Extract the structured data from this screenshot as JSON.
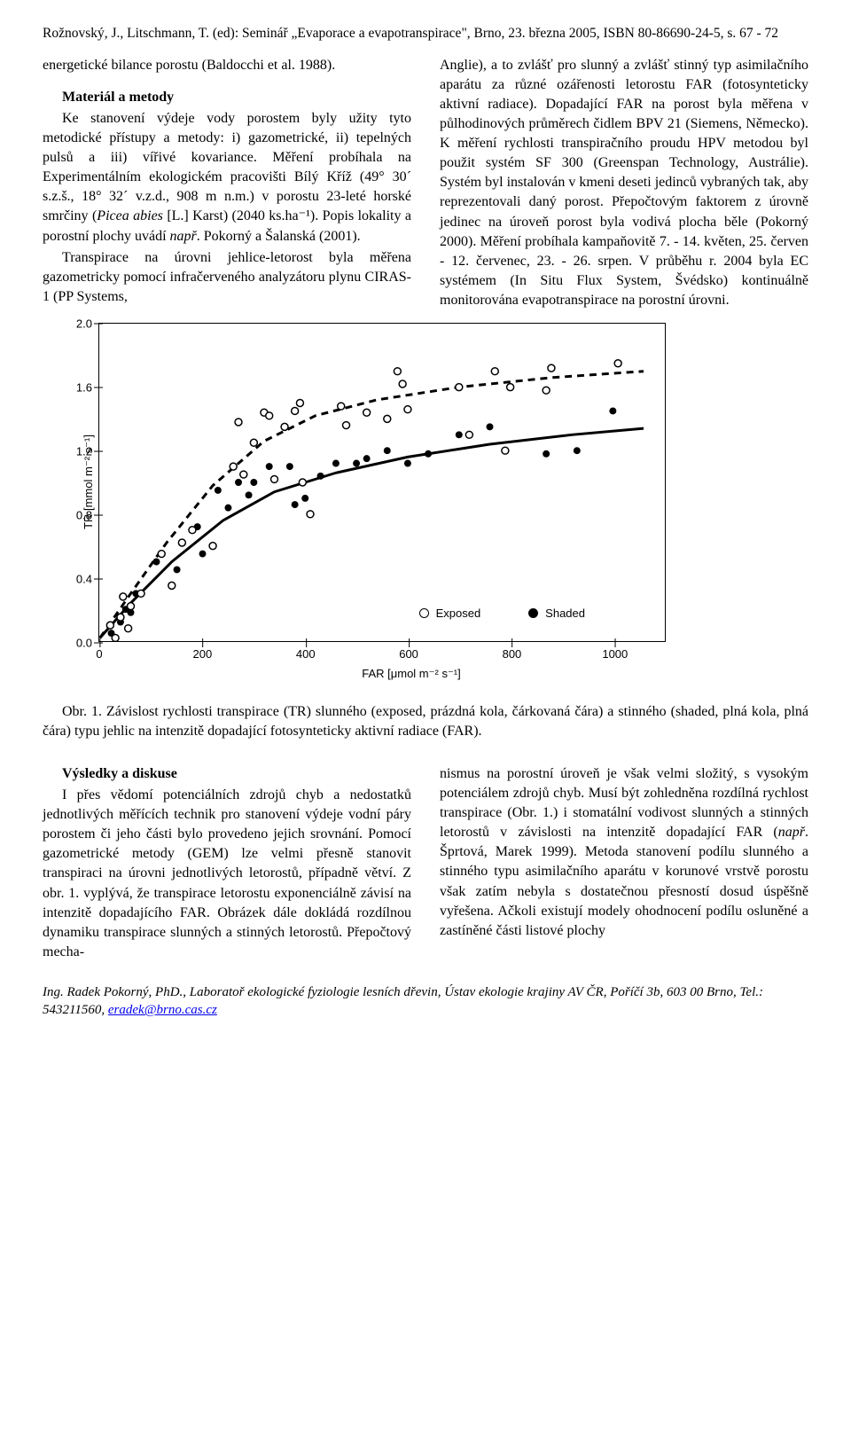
{
  "header": {
    "line1": "Rožnovský, J., Litschmann, T. (ed): Seminář „Evaporace a evapotranspirace\", Brno, 23. března 2005, ISBN 80-86690-24-5, s. 67 - 72"
  },
  "col_left": {
    "p1": "energetické bilance porostu (Baldocchi et al. 1988).",
    "section_title": "Materiál a metody",
    "p2a": "Ke stanovení výdeje vody porostem byly užity tyto metodické přístupy a metody: i) gazometrické, ii) tepelných pulsů a iii) vířivé kovariance. Měření probíhala na Experimentálním ekologickém pracovišti Bílý Kříž (49° 30´ s.z.š., 18° 32´ v.z.d., 908 m n.m.) v porostu 23-leté horské smrčiny (",
    "p2_species": "Picea abies",
    "p2b": " [L.] Karst) (2040 ks.ha⁻¹). Popis lokality a porostní plochy uvádí ",
    "p2_ref": "např",
    "p2c": ". Pokorný a Šalanská (2001).",
    "p3": "Transpirace na úrovni jehlice-letorost byla měřena gazometricky pomocí infračerveného analyzátoru plynu CIRAS-1 (PP Systems,"
  },
  "col_right": {
    "p1a": "Anglie), a to zvlášť pro slunný a zvlášť stinný typ asimilačního aparátu za různé ozářenosti letorostu FAR (fotosynteticky aktivní radiace). Dopadající FAR na porost byla měřena v půlhodinových průměrech čidlem BPV 21 (Siemens, Německo). K měření rychlosti transpiračního proudu HPV metodou byl použit systém SF 300 (Greenspan Technology, Austrálie). Systém byl instalován v kmeni deseti jedinců vybraných tak, aby reprezentovali daný porost. Přepočtovým faktorem z úrovně jedinec na úroveň porost byla vodivá plocha běle (Pokorný 2000). Měření probíhala kampaňovitě 7. - 14. květen, 25. červen - 12. červenec, 23. - 26. srpen. V průběhu r. 2004 byla EC systémem (In Situ Flux System, Švédsko) kontinuálně monitorována evapotranspirace na porostní úrovni."
  },
  "figure": {
    "type": "scatter-with-fit",
    "xlim": [
      0,
      1100
    ],
    "ylim": [
      0,
      2.0
    ],
    "xticks": [
      0,
      200,
      400,
      600,
      800,
      1000
    ],
    "yticks": [
      0.0,
      0.4,
      0.8,
      1.2,
      1.6,
      2.0
    ],
    "xlabel": "FAR [μmol m⁻² s⁻¹]",
    "ylabel": "TR  [mmol m⁻² s⁻¹]",
    "background_color": "#ffffff",
    "axis_color": "#000000",
    "legend": [
      {
        "marker": "open-circle",
        "label": "Exposed"
      },
      {
        "marker": "filled-circle",
        "label": "Shaded"
      }
    ],
    "exposed_points": [
      [
        20,
        0.1
      ],
      [
        30,
        0.02
      ],
      [
        40,
        0.15
      ],
      [
        45,
        0.28
      ],
      [
        55,
        0.08
      ],
      [
        60,
        0.22
      ],
      [
        80,
        0.3
      ],
      [
        120,
        0.55
      ],
      [
        140,
        0.35
      ],
      [
        160,
        0.62
      ],
      [
        180,
        0.7
      ],
      [
        220,
        0.6
      ],
      [
        260,
        1.1
      ],
      [
        270,
        1.38
      ],
      [
        280,
        1.05
      ],
      [
        300,
        1.25
      ],
      [
        320,
        1.44
      ],
      [
        330,
        1.42
      ],
      [
        340,
        1.02
      ],
      [
        360,
        1.35
      ],
      [
        380,
        1.45
      ],
      [
        390,
        1.5
      ],
      [
        395,
        1.0
      ],
      [
        410,
        0.8
      ],
      [
        470,
        1.48
      ],
      [
        480,
        1.36
      ],
      [
        520,
        1.44
      ],
      [
        560,
        1.4
      ],
      [
        580,
        1.7
      ],
      [
        590,
        1.62
      ],
      [
        600,
        1.46
      ],
      [
        700,
        1.6
      ],
      [
        720,
        1.3
      ],
      [
        770,
        1.7
      ],
      [
        790,
        1.2
      ],
      [
        800,
        1.6
      ],
      [
        870,
        1.58
      ],
      [
        880,
        1.72
      ],
      [
        1010,
        1.75
      ]
    ],
    "shaded_points": [
      [
        22,
        0.05
      ],
      [
        40,
        0.12
      ],
      [
        50,
        0.2
      ],
      [
        60,
        0.18
      ],
      [
        70,
        0.3
      ],
      [
        110,
        0.5
      ],
      [
        150,
        0.45
      ],
      [
        190,
        0.72
      ],
      [
        200,
        0.55
      ],
      [
        230,
        0.95
      ],
      [
        250,
        0.84
      ],
      [
        270,
        1.0
      ],
      [
        290,
        0.92
      ],
      [
        300,
        1.0
      ],
      [
        330,
        1.1
      ],
      [
        370,
        1.1
      ],
      [
        380,
        0.86
      ],
      [
        400,
        0.9
      ],
      [
        430,
        1.04
      ],
      [
        460,
        1.12
      ],
      [
        500,
        1.12
      ],
      [
        520,
        1.15
      ],
      [
        560,
        1.2
      ],
      [
        600,
        1.12
      ],
      [
        640,
        1.18
      ],
      [
        700,
        1.3
      ],
      [
        760,
        1.35
      ],
      [
        870,
        1.18
      ],
      [
        930,
        1.2
      ],
      [
        1000,
        1.45
      ]
    ],
    "exposed_curve": [
      [
        0,
        0.02
      ],
      [
        60,
        0.3
      ],
      [
        130,
        0.62
      ],
      [
        220,
        0.98
      ],
      [
        320,
        1.26
      ],
      [
        420,
        1.42
      ],
      [
        540,
        1.52
      ],
      [
        700,
        1.6
      ],
      [
        880,
        1.66
      ],
      [
        1060,
        1.7
      ]
    ],
    "shaded_curve": [
      [
        0,
        0.02
      ],
      [
        60,
        0.24
      ],
      [
        140,
        0.5
      ],
      [
        240,
        0.76
      ],
      [
        340,
        0.94
      ],
      [
        460,
        1.06
      ],
      [
        600,
        1.16
      ],
      [
        760,
        1.24
      ],
      [
        920,
        1.3
      ],
      [
        1060,
        1.34
      ]
    ],
    "exposed_curve_dash": "8 6",
    "curve_color": "#000000",
    "curve_width": 3,
    "marker_radius": 4
  },
  "caption": {
    "text": "Obr. 1. Závislost rychlosti transpirace (TR) slunného (exposed, prázdná kola, čárkovaná čára) a stinného (shaded, plná kola, plná čára) typu jehlic na intenzitě dopadající fotosynteticky aktivní radiace (FAR)."
  },
  "lower_left": {
    "section_title": "Výsledky a diskuse",
    "p1": "I přes vědomí potenciálních zdrojů chyb a nedostatků jednotlivých měřících technik pro stanovení výdeje vodní páry porostem či jeho části bylo provedeno jejich srovnání. Pomocí gazometrické metody (GEM) lze velmi přesně stanovit transpiraci na úrovni jednotlivých letorostů, případně větví. Z obr. 1. vyplývá, že transpirace letorostu exponenciálně závisí na intenzitě dopadajícího FAR. Obrázek dále dokládá rozdílnou dynamiku transpirace slunných a stinných letorostů. Přepočtový mecha-"
  },
  "lower_right": {
    "p1a": "nismus na porostní úroveň je však velmi složitý, s vysokým potenciálem zdrojů chyb. Musí být zohledněna rozdílná rychlost transpirace (Obr. 1.) i stomatální vodivost slunných a stinných letorostů v závislosti na intenzitě dopadající FAR (",
    "p1_ref": "např",
    "p1b": ". Šprtová, Marek 1999). Metoda stanovení podílu slunného a stinného typu asimilačního aparátu v korunové vrstvě porostu však zatím nebyla s dostatečnou přesností dosud úspěšně vyřešena. Ačkoli existují modely ohodnocení podílu osluněné a zastíněné části listové plochy"
  },
  "footer": {
    "line_a": "Ing. Radek Pokorný, PhD., Laboratoř ekologické fyziologie lesních dřevin, Ústav ekologie krajiny AV ČR, Poříčí 3b, 603 00 Brno, Tel.: 543211560, ",
    "email": "eradek@brno.cas.cz"
  }
}
